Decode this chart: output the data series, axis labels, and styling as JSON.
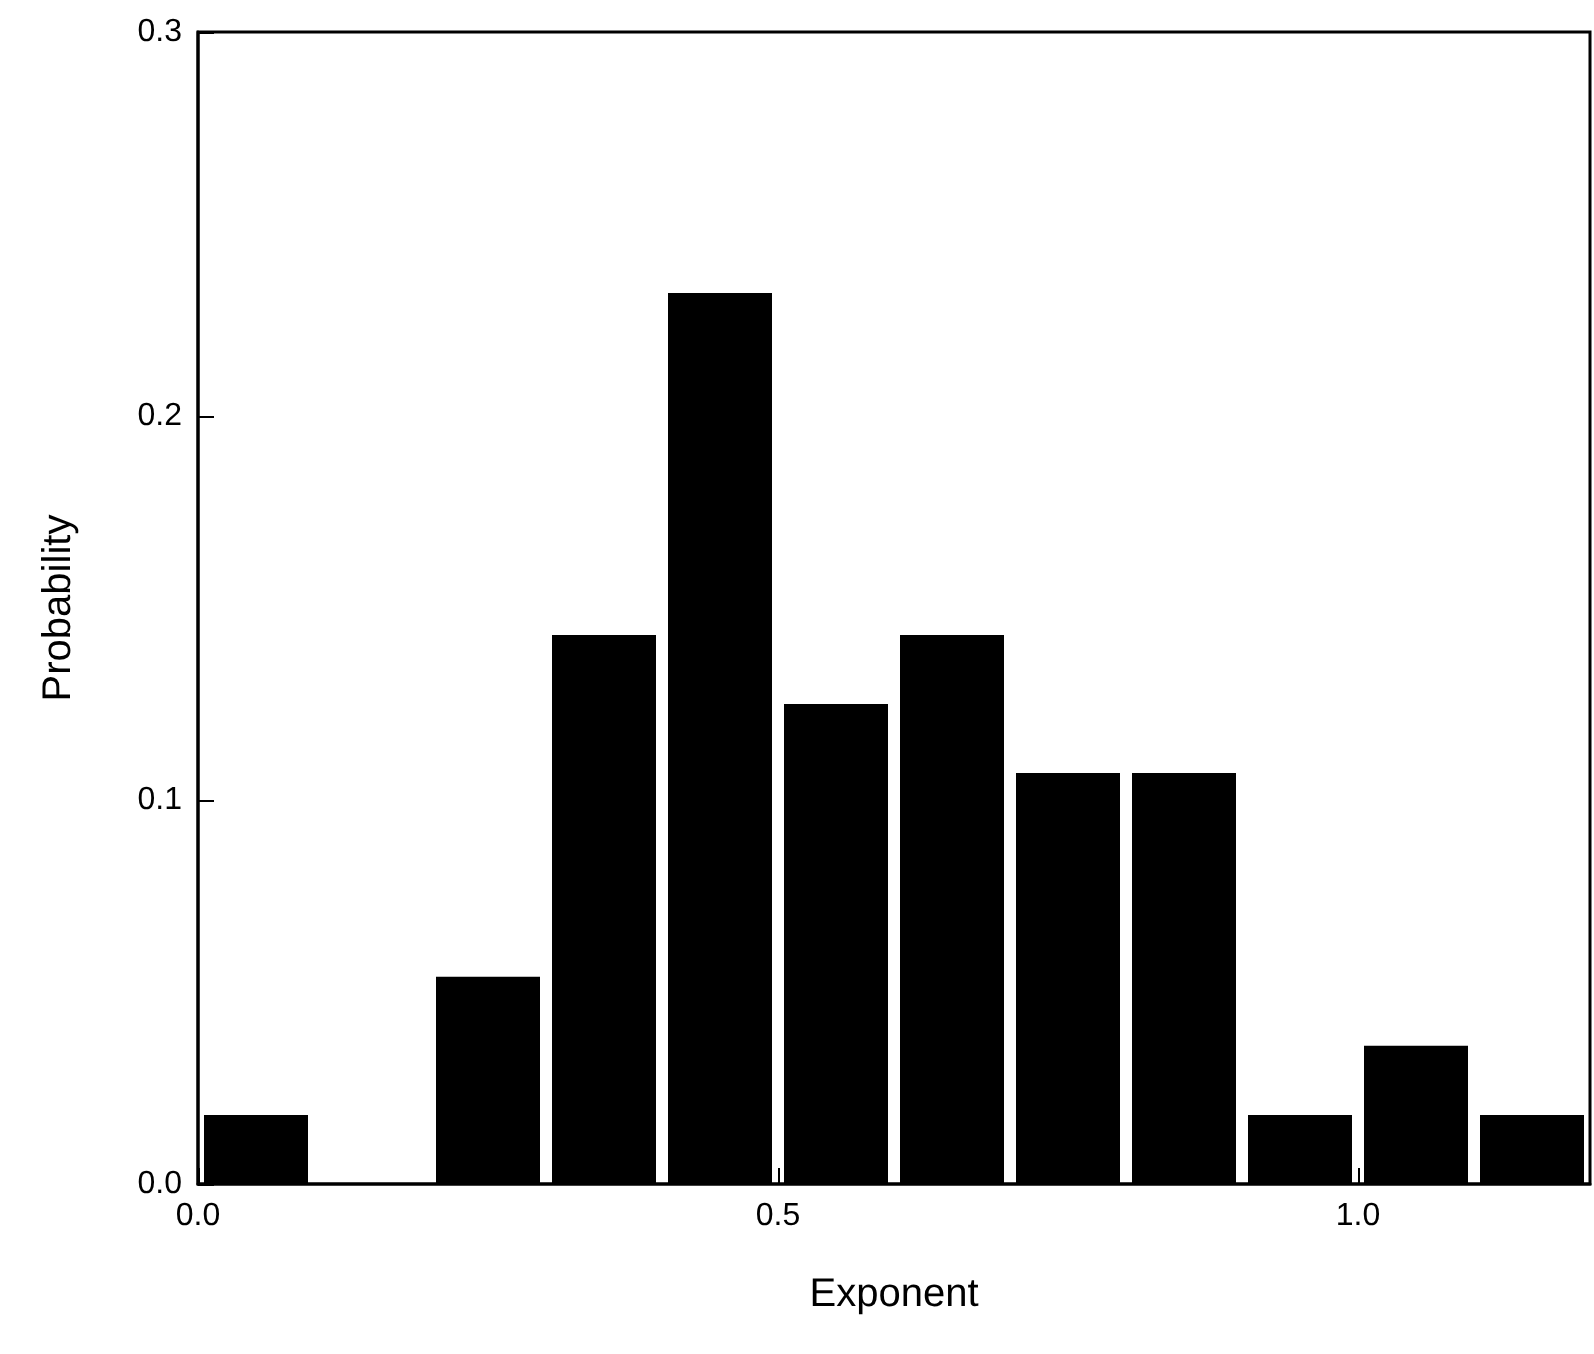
{
  "chart_data": {
    "type": "histogram",
    "xlabel": "Exponent",
    "ylabel": "Probability",
    "bins": [
      0,
      0.1,
      0.2,
      0.3,
      0.4,
      0.5,
      0.6,
      0.7,
      0.8,
      0.9,
      1.0,
      1.1,
      1.2
    ],
    "values": [
      0.018,
      0,
      0.054,
      0.143,
      0.232,
      0.125,
      0.143,
      0.107,
      0.107,
      0.018,
      0.036,
      0.018
    ],
    "color": "#000000",
    "xlim": [
      0,
      1.2
    ],
    "xticks": [
      {
        "value": 0,
        "label": "0.0"
      },
      {
        "value": 0.5,
        "label": "0.5"
      },
      {
        "value": 1.0,
        "label": "1.0"
      }
    ],
    "ylim": [
      0,
      0.3
    ],
    "yticks": [
      {
        "value": 0,
        "label": "0.0"
      },
      {
        "value": 0.1,
        "label": "0.1"
      },
      {
        "value": 0.2,
        "label": "0.2"
      },
      {
        "value": 0.3,
        "label": "0.3"
      }
    ],
    "grid": false
  }
}
